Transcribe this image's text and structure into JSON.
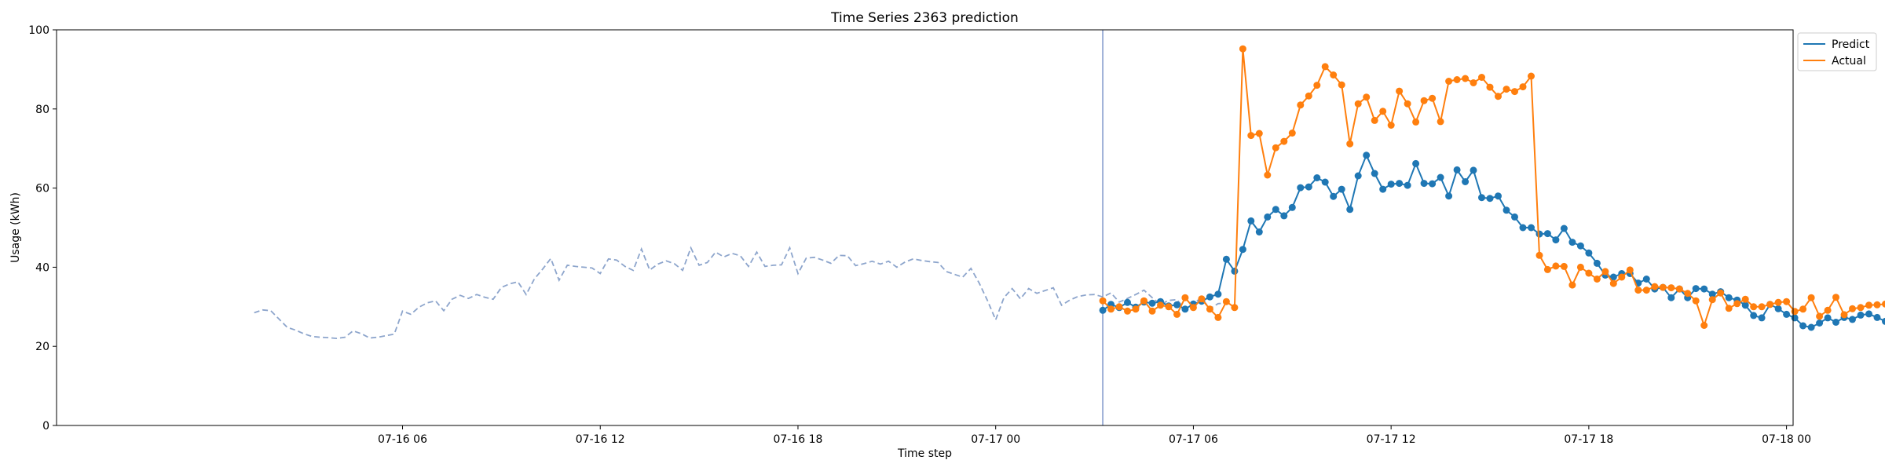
{
  "chart_data": {
    "type": "line",
    "title": "Time Series 2363 prediction",
    "xlabel": "Time step",
    "ylabel": "Usage (kWh)",
    "ylim": [
      0,
      100
    ],
    "xlim_hours": [
      -4.5,
      48.2
    ],
    "grid": false,
    "legend_placement": "top-right outside",
    "x_ticks": [
      {
        "label": "07-16 06",
        "hour": 6
      },
      {
        "label": "07-16 12",
        "hour": 12
      },
      {
        "label": "07-16 18",
        "hour": 18
      },
      {
        "label": "07-17 00",
        "hour": 24
      },
      {
        "label": "07-17 06",
        "hour": 30
      },
      {
        "label": "07-17 12",
        "hour": 36
      },
      {
        "label": "07-17 18",
        "hour": 42
      },
      {
        "label": "07-18 00",
        "hour": 48
      }
    ],
    "y_ticks": [
      0,
      20,
      40,
      60,
      80,
      100
    ],
    "forecast_start_hour": 27.25,
    "colors": {
      "history": "#8da5cc",
      "predict": "#1f77b4",
      "actual": "#ff7f0e",
      "divider": "#7f97c9"
    },
    "history": {
      "start_hour": 1.5,
      "step_hours": 0.25,
      "values": [
        28.5,
        29.2,
        29.0,
        26.9,
        24.8,
        24.1,
        23.2,
        22.5,
        22.3,
        22.2,
        22.0,
        22.3,
        23.9,
        23.2,
        22.1,
        22.3,
        22.7,
        23.1,
        28.9,
        28.1,
        29.9,
        31.0,
        31.5,
        29.0,
        31.9,
        32.9,
        32.1,
        33.1,
        32.4,
        31.9,
        34.9,
        35.8,
        36.3,
        33.1,
        37.0,
        39.5,
        42.2,
        36.7,
        40.5,
        40.2,
        40.0,
        39.8,
        38.4,
        42.1,
        41.8,
        40.2,
        39.2,
        44.6,
        39.3,
        40.8,
        41.6,
        40.9,
        39.2,
        44.9,
        40.5,
        41.2,
        43.8,
        42.6,
        43.5,
        42.9,
        40.2,
        43.8,
        40.2,
        40.5,
        40.6,
        44.9,
        38.4,
        42.3,
        42.5,
        41.8,
        41.0,
        43.0,
        42.9,
        40.4,
        40.9,
        41.5,
        40.8,
        41.5,
        40.0,
        41.3,
        42.1,
        41.7,
        41.4,
        41.2,
        38.9,
        38.2,
        37.5,
        39.7,
        36.0,
        31.6,
        26.7,
        32.3,
        34.6,
        32.0,
        34.6,
        33.4,
        34.1,
        34.8,
        30.4,
        31.7,
        32.6,
        33.0,
        33.1,
        32.5,
        33.5,
        31.2,
        32.1,
        33.1,
        34.2,
        32.3,
        30.6,
        31.6,
        31.8,
        29.3,
        31.0,
        32.2,
        29.5,
        30.8,
        31.0
      ]
    },
    "series": [
      {
        "name": "Predict",
        "start_hour": 27.25,
        "step_hours": 0.25,
        "values": [
          29.1,
          30.6,
          29.8,
          31.1,
          29.9,
          31.2,
          30.9,
          31.3,
          30.2,
          30.5,
          29.4,
          30.7,
          31.4,
          32.5,
          33.2,
          42.0,
          39.0,
          44.5,
          51.7,
          48.9,
          52.7,
          54.6,
          53.0,
          55.1,
          60.1,
          60.3,
          62.6,
          61.5,
          57.9,
          59.7,
          54.6,
          63.1,
          68.3,
          63.7,
          59.7,
          61.0,
          61.2,
          60.7,
          66.2,
          61.2,
          61.1,
          62.7,
          58.0,
          64.6,
          61.6,
          64.5,
          57.6,
          57.4,
          58.0,
          54.4,
          52.7,
          50.0,
          50.0,
          48.4,
          48.5,
          46.9,
          49.8,
          46.3,
          45.4,
          43.6,
          41.0,
          38.0,
          37.5,
          38.4,
          38.4,
          36.0,
          37.0,
          34.5,
          34.9,
          32.3,
          34.5,
          32.3,
          34.6,
          34.5,
          33.2,
          33.8,
          32.3,
          31.7,
          30.4,
          27.8,
          27.2,
          30.6,
          29.5,
          28.1,
          27.2,
          25.2,
          24.8,
          25.9,
          27.2,
          26.1,
          27.3,
          26.8,
          27.9,
          28.2,
          27.3,
          26.3,
          26.8,
          26.0,
          26.1
        ]
      },
      {
        "name": "Actual",
        "start_hour": 27.25,
        "step_hours": 0.25,
        "values": [
          31.5,
          29.4,
          30.0,
          28.9,
          29.4,
          31.5,
          28.9,
          30.4,
          30.0,
          28.1,
          32.3,
          29.8,
          32.0,
          29.4,
          27.3,
          31.3,
          29.8,
          95.2,
          73.3,
          73.8,
          63.3,
          70.2,
          71.8,
          73.9,
          81.0,
          83.3,
          86.0,
          90.7,
          88.6,
          86.1,
          71.2,
          81.3,
          83.0,
          77.1,
          79.4,
          75.9,
          84.5,
          81.3,
          76.7,
          82.1,
          82.7,
          76.8,
          87.0,
          87.4,
          87.7,
          86.6,
          88.0,
          85.5,
          83.2,
          85.0,
          84.4,
          85.6,
          88.3,
          43.0,
          39.4,
          40.3,
          40.2,
          35.5,
          40.0,
          38.5,
          37.0,
          38.9,
          35.9,
          37.5,
          39.3,
          34.2,
          34.2,
          35.1,
          34.9,
          34.8,
          34.5,
          33.4,
          31.5,
          25.3,
          31.8,
          33.5,
          29.6,
          30.8,
          31.9,
          30.0,
          30.0,
          30.6,
          31.1,
          31.3,
          28.8,
          29.4,
          32.3,
          27.6,
          29.1,
          32.4,
          28.0,
          29.5,
          29.8,
          30.4,
          30.5,
          30.7,
          29.4
        ]
      }
    ]
  }
}
